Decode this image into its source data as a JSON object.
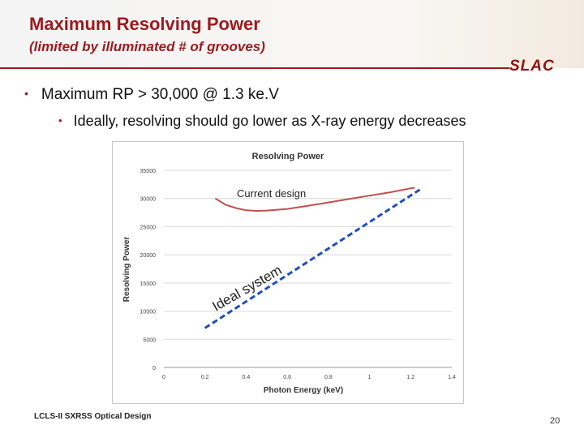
{
  "slide": {
    "title": "Maximum Resolving Power",
    "subtitle": "(limited by illuminated # of grooves)",
    "logo": "SLAC",
    "bullet1": "Maximum RP > 30,000 @ 1.3 ke.V",
    "bullet2": "Ideally, resolving should go lower as X-ray energy decreases",
    "footer": "LCLS-II SXRSS Optical Design",
    "page_number": "20",
    "colors": {
      "title": "#9b1b1f",
      "curve": "#c0504d",
      "ideal_line": "#1f4fbf"
    }
  },
  "chart_data": {
    "type": "line",
    "title": "Resolving Power",
    "xlabel": "Photon Energy (keV)",
    "ylabel": "Resolving Power",
    "xlim": [
      0,
      1.4
    ],
    "ylim": [
      0,
      35000
    ],
    "xticks": [
      0,
      0.2,
      0.4,
      0.6,
      0.8,
      1,
      1.2,
      1.4
    ],
    "xtick_labels": [
      "0",
      "0.2",
      "0.4",
      "0.6",
      "0.8",
      "1",
      "1.2",
      "1.4"
    ],
    "yticks": [
      0,
      5000,
      10000,
      15000,
      20000,
      25000,
      30000,
      35000
    ],
    "ytick_labels": [
      "0",
      "5000",
      "10000",
      "15000",
      "20000",
      "25000",
      "30000",
      "35000"
    ],
    "grid": true,
    "series": [
      {
        "style": "solid",
        "color": "#c0504d",
        "x": [
          0.25,
          0.3,
          0.35,
          0.4,
          0.45,
          0.5,
          0.6,
          0.7,
          0.8,
          0.9,
          1.0,
          1.1,
          1.2,
          1.22
        ],
        "y": [
          30000,
          28900,
          28300,
          27900,
          27800,
          27850,
          28150,
          28700,
          29300,
          29900,
          30500,
          31100,
          31800,
          31900
        ]
      },
      {
        "style": "dashed",
        "color": "#1f4fbf",
        "x": [
          0.2,
          1.25
        ],
        "y": [
          7000,
          31700
        ]
      }
    ],
    "annotations": [
      {
        "text": "Current design"
      },
      {
        "text": "Ideal system"
      }
    ]
  }
}
